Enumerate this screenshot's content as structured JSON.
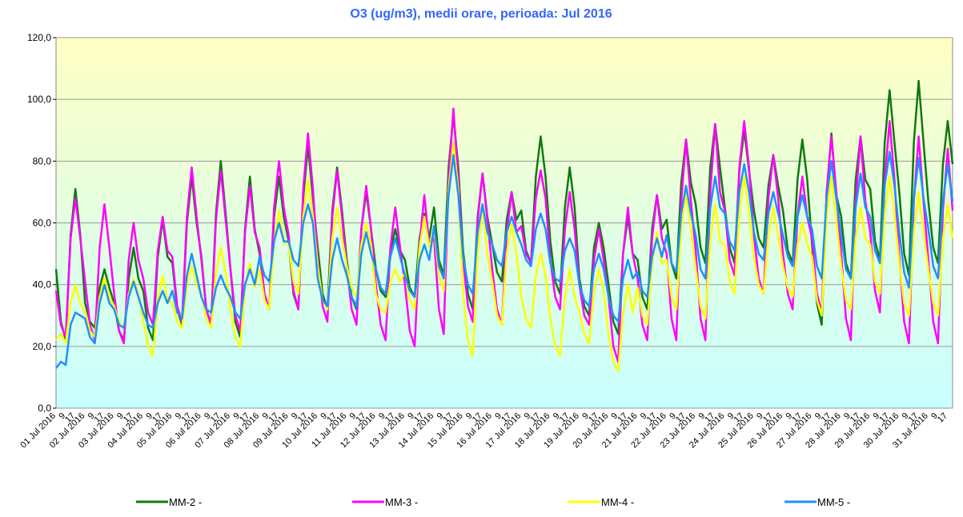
{
  "chart_data": {
    "type": "line",
    "title": "O3 (ug/m3), medii orare, perioada: Jul 2016",
    "categories": [
      "01 Jul 2016",
      null,
      "9",
      null,
      "17",
      null,
      "02 Jul 2016",
      null,
      "9",
      null,
      "17",
      null,
      "03 Jul 2016",
      null,
      "9",
      null,
      "17",
      null,
      "04 Jul 2016",
      null,
      "9",
      null,
      "17",
      null,
      "05 Jul 2016",
      null,
      "9",
      null,
      "17",
      null,
      "06 Jul 2016",
      null,
      "9",
      null,
      "17",
      null,
      "07 Jul 2016",
      null,
      "9",
      null,
      "17",
      null,
      "08 Jul 2016",
      null,
      "9",
      null,
      "17",
      null,
      "09 Jul 2016",
      null,
      "9",
      null,
      "17",
      null,
      "10 Jul 2016",
      null,
      "9",
      null,
      "17",
      null,
      "11 Jul 2016",
      null,
      "9",
      null,
      "17",
      null,
      "12 Jul 2016",
      null,
      "9",
      null,
      "17",
      null,
      "13 Jul 2016",
      null,
      "9",
      null,
      "17",
      null,
      "14 Jul 2016",
      null,
      "9",
      null,
      "17",
      null,
      "15 Jul 2016",
      null,
      "9",
      null,
      "17",
      null,
      "16 Jul 2016",
      null,
      "9",
      null,
      "17",
      null,
      "17 Jul 2016",
      null,
      "9",
      null,
      "17",
      null,
      "18 Jul 2016",
      null,
      "9",
      null,
      "17",
      null,
      "19 Jul 2016",
      null,
      "9",
      null,
      "17",
      null,
      "20 Jul 2016",
      null,
      "9",
      null,
      "17",
      null,
      "21 Jul 2016",
      null,
      "9",
      null,
      "17",
      null,
      "22 Jul 2016",
      null,
      "9",
      null,
      "17",
      null,
      "23 Jul 2016",
      null,
      "9",
      null,
      "17",
      null,
      "24 Jul 2016",
      null,
      "9",
      null,
      "17",
      null,
      "25 Jul 2016",
      null,
      "9",
      null,
      "17",
      null,
      "26 Jul 2016",
      null,
      "9",
      null,
      "17",
      null,
      "27 Jul 2016",
      null,
      "9",
      null,
      "17",
      null,
      "28 Jul 2016",
      null,
      "9",
      null,
      "17",
      null,
      "29 Jul 2016",
      null,
      "9",
      null,
      "17",
      null,
      "30 Jul 2016",
      null,
      "9",
      null,
      "17",
      null,
      "31 Jul 2016",
      null,
      "9",
      null,
      "17",
      null
    ],
    "series": [
      {
        "name": "MM-2 -",
        "color": "#0f7a0f",
        "values": [
          45,
          28,
          22,
          56,
          71,
          56,
          34,
          28,
          26,
          39,
          45,
          39,
          34,
          25,
          22,
          42,
          52,
          42,
          38,
          26,
          22,
          49,
          61,
          49,
          47,
          32,
          27,
          60,
          75,
          60,
          49,
          32,
          27,
          63,
          80,
          63,
          45,
          28,
          23,
          58,
          75,
          58,
          50,
          37,
          32,
          62,
          75,
          62,
          54,
          37,
          32,
          68,
          85,
          68,
          52,
          37,
          32,
          64,
          78,
          64,
          48,
          36,
          32,
          58,
          70,
          58,
          45,
          38,
          36,
          51,
          58,
          51,
          48,
          39,
          36,
          55,
          63,
          55,
          65,
          48,
          43,
          78,
          95,
          78,
          51,
          37,
          32,
          62,
          76,
          62,
          53,
          44,
          41,
          61,
          70,
          61,
          64,
          51,
          47,
          75,
          88,
          75,
          54,
          41,
          37,
          65,
          78,
          65,
          42,
          33,
          30,
          52,
          60,
          52,
          40,
          28,
          24,
          50,
          62,
          50,
          48,
          36,
          32,
          58,
          69,
          58,
          61,
          47,
          42,
          73,
          87,
          73,
          66,
          52,
          47,
          78,
          92,
          78,
          65,
          52,
          47,
          77,
          90,
          77,
          64,
          55,
          52,
          72,
          82,
          72,
          64,
          51,
          47,
          74,
          87,
          74,
          53,
          34,
          27,
          69,
          89,
          69,
          62,
          47,
          42,
          74,
          88,
          74,
          71,
          54,
          48,
          86,
          103,
          86,
          70,
          50,
          43,
          86,
          106,
          86,
          67,
          52,
          47,
          79,
          93,
          79
        ]
      },
      {
        "name": "MM-3 -",
        "color": "#ff00ff",
        "values": [
          38,
          27,
          23,
          55,
          68,
          55,
          41,
          27,
          22,
          52,
          66,
          52,
          37,
          25,
          21,
          48,
          60,
          48,
          42,
          31,
          27,
          51,
          62,
          51,
          49,
          33,
          28,
          62,
          78,
          62,
          48,
          32,
          27,
          61,
          77,
          61,
          45,
          30,
          25,
          57,
          72,
          57,
          52,
          37,
          32,
          65,
          80,
          65,
          56,
          38,
          32,
          71,
          89,
          71,
          48,
          33,
          28,
          62,
          77,
          62,
          46,
          32,
          27,
          58,
          72,
          58,
          40,
          27,
          22,
          52,
          65,
          52,
          40,
          25,
          20,
          53,
          69,
          53,
          55,
          32,
          24,
          74,
          97,
          74,
          48,
          33,
          28,
          61,
          76,
          61,
          45,
          32,
          27,
          57,
          70,
          57,
          59,
          50,
          47,
          68,
          77,
          68,
          48,
          36,
          32,
          58,
          70,
          58,
          40,
          30,
          27,
          48,
          58,
          48,
          36,
          20,
          15,
          50,
          65,
          50,
          42,
          27,
          22,
          55,
          69,
          55,
          50,
          29,
          22,
          67,
          87,
          67,
          51,
          29,
          22,
          70,
          92,
          70,
          64,
          48,
          43,
          78,
          93,
          78,
          56,
          42,
          37,
          68,
          82,
          68,
          50,
          37,
          32,
          62,
          75,
          62,
          55,
          37,
          31,
          70,
          88,
          70,
          50,
          29,
          22,
          67,
          88,
          67,
          57,
          38,
          31,
          74,
          93,
          74,
          49,
          28,
          21,
          67,
          88,
          67,
          48,
          28,
          21,
          64,
          84,
          64
        ]
      },
      {
        "name": "MM-4 -",
        "color": "#ffff00",
        "values": [
          22,
          24,
          21,
          34,
          40,
          34,
          31,
          25,
          23,
          36,
          42,
          36,
          33,
          28,
          26,
          37,
          42,
          37,
          28,
          20,
          17,
          35,
          43,
          35,
          34,
          28,
          26,
          40,
          46,
          40,
          37,
          29,
          26,
          44,
          52,
          44,
          32,
          23,
          20,
          39,
          47,
          39,
          45,
          35,
          32,
          54,
          64,
          54,
          53,
          41,
          37,
          62,
          74,
          62,
          46,
          35,
          32,
          55,
          65,
          55,
          46,
          39,
          36,
          53,
          60,
          53,
          37,
          32,
          31,
          41,
          45,
          41,
          44,
          35,
          32,
          52,
          62,
          52,
          58,
          43,
          38,
          71,
          86,
          71,
          37,
          22,
          17,
          50,
          66,
          50,
          41,
          30,
          27,
          50,
          60,
          50,
          36,
          29,
          26,
          43,
          50,
          43,
          29,
          20,
          17,
          36,
          45,
          36,
          31,
          24,
          21,
          38,
          45,
          38,
          24,
          15,
          12,
          31,
          40,
          31,
          39,
          30,
          27,
          47,
          57,
          47,
          48,
          36,
          32,
          58,
          70,
          58,
          45,
          33,
          29,
          54,
          66,
          54,
          53,
          41,
          37,
          63,
          75,
          63,
          49,
          40,
          37,
          56,
          65,
          56,
          46,
          39,
          36,
          53,
          60,
          53,
          49,
          35,
          30,
          61,
          75,
          61,
          46,
          35,
          32,
          55,
          65,
          55,
          53,
          41,
          37,
          63,
          75,
          63,
          47,
          34,
          30,
          57,
          70,
          57,
          45,
          34,
          30,
          55,
          66,
          55
        ]
      },
      {
        "name": "MM-5 -",
        "color": "#1e90ff",
        "values": [
          13,
          15,
          14,
          27,
          31,
          30,
          29,
          23,
          21,
          34,
          40,
          34,
          32,
          27,
          26,
          36,
          41,
          36,
          31,
          27,
          26,
          34,
          38,
          34,
          38,
          31,
          29,
          43,
          50,
          43,
          36,
          32,
          31,
          39,
          43,
          39,
          36,
          31,
          29,
          40,
          45,
          40,
          49,
          43,
          41,
          54,
          60,
          54,
          54,
          48,
          46,
          60,
          66,
          60,
          42,
          35,
          33,
          48,
          55,
          48,
          43,
          36,
          33,
          50,
          57,
          50,
          45,
          39,
          37,
          49,
          55,
          49,
          43,
          38,
          36,
          48,
          53,
          48,
          59,
          46,
          42,
          69,
          82,
          69,
          49,
          40,
          37,
          57,
          66,
          57,
          53,
          48,
          46,
          57,
          62,
          57,
          53,
          48,
          46,
          58,
          63,
          58,
          47,
          42,
          41,
          51,
          55,
          51,
          40,
          35,
          33,
          45,
          50,
          45,
          36,
          30,
          28,
          42,
          48,
          42,
          44,
          38,
          36,
          49,
          55,
          49,
          56,
          47,
          44,
          63,
          72,
          63,
          56,
          45,
          42,
          65,
          75,
          65,
          63,
          54,
          51,
          70,
          79,
          70,
          57,
          50,
          48,
          63,
          70,
          63,
          56,
          49,
          46,
          62,
          69,
          62,
          58,
          46,
          42,
          68,
          80,
          68,
          56,
          45,
          42,
          65,
          76,
          65,
          62,
          51,
          47,
          72,
          83,
          72,
          57,
          44,
          39,
          68,
          81,
          68,
          58,
          46,
          42,
          67,
          79,
          67
        ]
      }
    ],
    "ylim": [
      0,
      120
    ],
    "yticks": [
      {
        "value": 0,
        "label": "0,0"
      },
      {
        "value": 20,
        "label": "20,0"
      },
      {
        "value": 40,
        "label": "40,0"
      },
      {
        "value": 60,
        "label": "60,0"
      },
      {
        "value": 80,
        "label": "80,0"
      },
      {
        "value": 100,
        "label": "100,0"
      },
      {
        "value": 120,
        "label": "120,0"
      }
    ],
    "grid": true
  }
}
